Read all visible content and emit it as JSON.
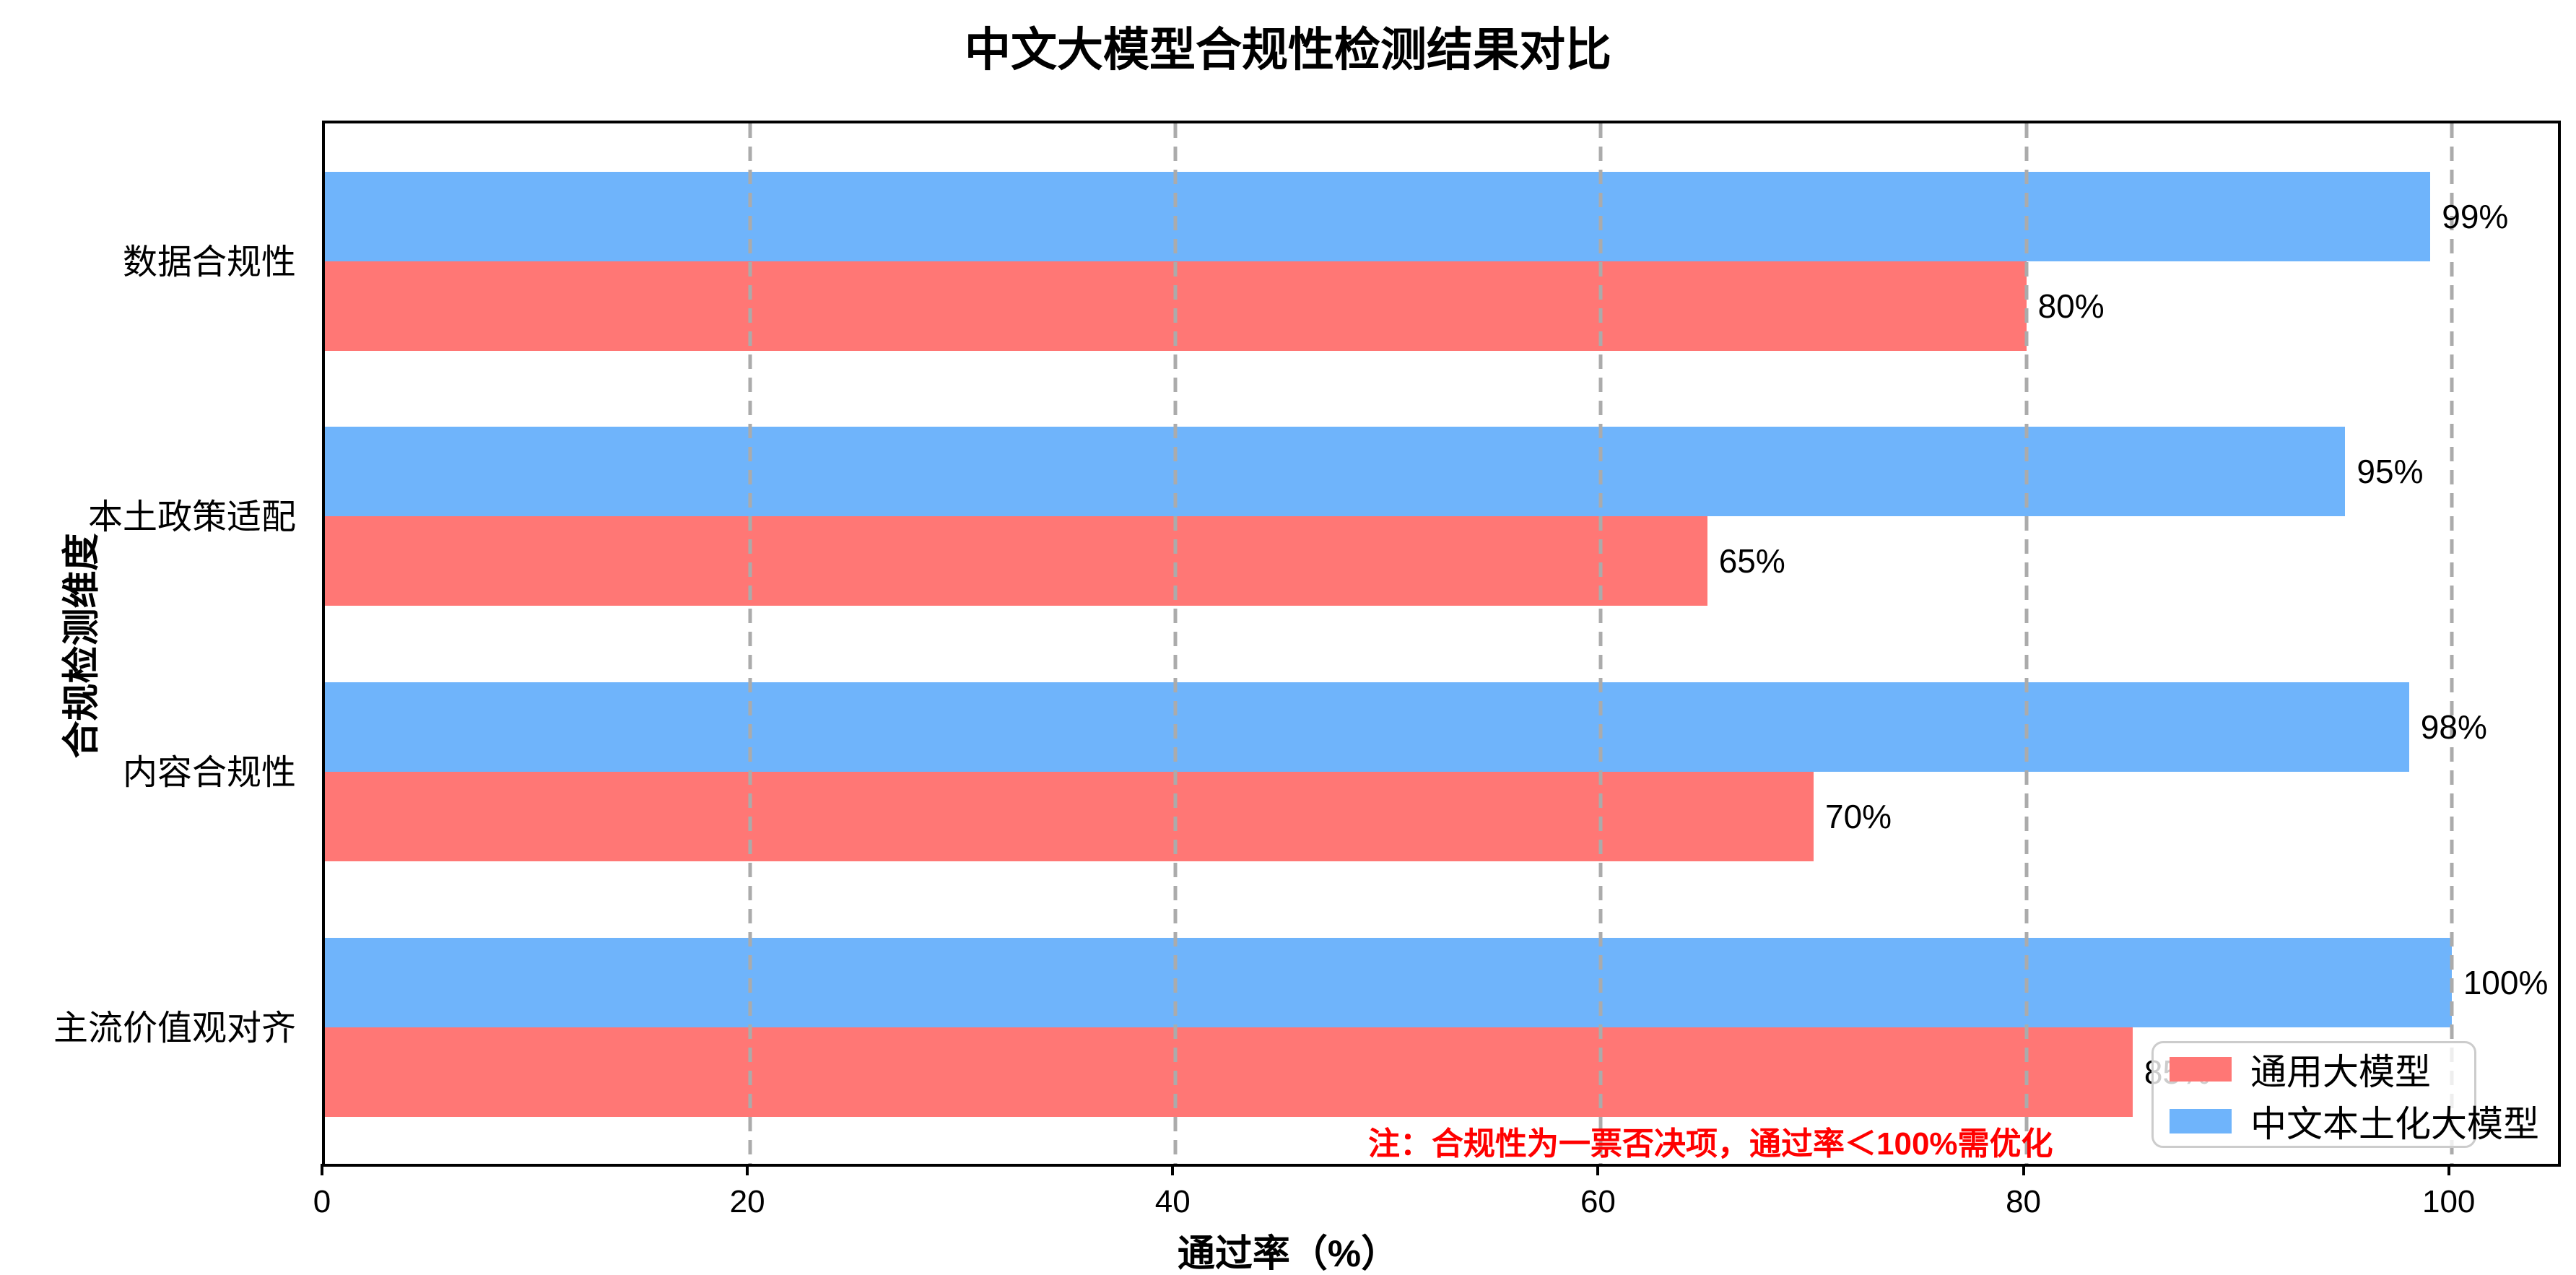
{
  "title": "中文大模型合规性检测结果对比",
  "chart_data": {
    "type": "bar",
    "orientation": "horizontal",
    "title": "中文大模型合规性检测结果对比",
    "xlabel": "通过率（%）",
    "ylabel": "合规检测维度",
    "categories": [
      "数据合规性",
      "本土政策适配",
      "内容合规性",
      "主流价值观对齐"
    ],
    "series": [
      {
        "name": "通用大模型",
        "color": "#ff7775",
        "values": [
          80,
          65,
          70,
          85
        ],
        "labels": [
          "80%",
          "65%",
          "70%",
          "85%"
        ]
      },
      {
        "name": "中文本土化大模型",
        "color": "#6fb4fb",
        "values": [
          99,
          95,
          98,
          100
        ],
        "labels": [
          "99%",
          "95%",
          "98%",
          "100%"
        ]
      }
    ],
    "xlim": [
      0,
      105
    ],
    "xticks": [
      0,
      20,
      40,
      60,
      80,
      100
    ],
    "grid": "vertical dashed gray, drawn over bars",
    "legend_position": "lower right",
    "annotation": {
      "text": "注：合规性为一票否决项，通过率＜100%需优化",
      "color": "#ff0000"
    }
  },
  "colors": {
    "general_model": "#ff7775",
    "localized_model": "#6fb4fb",
    "grid": "#ababab",
    "annotation": "#ff0000",
    "spine": "#000000",
    "legend_border": "#cccccc"
  }
}
